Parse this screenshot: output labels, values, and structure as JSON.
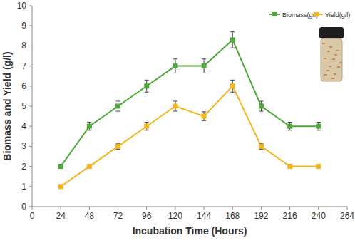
{
  "chart_data": {
    "type": "line",
    "x_label": "Incubation Time (Hours)",
    "y_label": "Biomass and Yield (g/l)",
    "x": [
      24,
      48,
      72,
      96,
      120,
      144,
      168,
      192,
      216,
      240
    ],
    "series": [
      {
        "name": "Biomass(g/l)",
        "color": "#4ea93b",
        "marker": "square",
        "line_style": "solid",
        "values": [
          2,
          4,
          5,
          6,
          7,
          7,
          8.3,
          5,
          4,
          4
        ],
        "errors": [
          0.1,
          0.2,
          0.25,
          0.3,
          0.35,
          0.35,
          0.4,
          0.25,
          0.2,
          0.2
        ]
      },
      {
        "name": "Yield(g/l)",
        "color": "#f5b51c",
        "marker": "square",
        "line_style": "solid",
        "values": [
          1,
          2,
          3,
          4,
          5,
          4.5,
          6,
          3,
          2,
          2
        ],
        "errors": [
          0.05,
          0.1,
          0.15,
          0.2,
          0.25,
          0.22,
          0.3,
          0.15,
          0.1,
          0.1
        ]
      }
    ],
    "xlim": [
      0,
      264
    ],
    "xticks": [
      0,
      24,
      48,
      72,
      96,
      120,
      144,
      168,
      192,
      216,
      240,
      264
    ],
    "ylim": [
      0,
      10
    ],
    "yticks": [
      0,
      1,
      2,
      3,
      4,
      5,
      6,
      7,
      8,
      9,
      10
    ],
    "grid": false,
    "legend": "upper right"
  }
}
